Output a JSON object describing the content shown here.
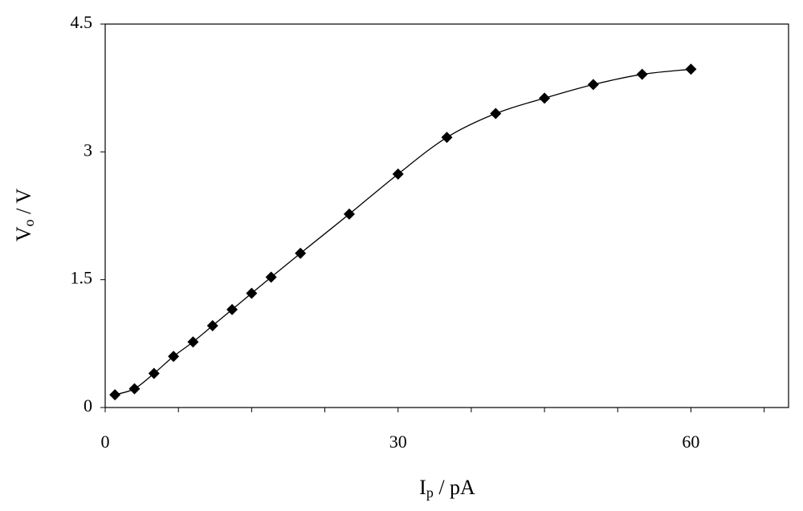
{
  "chart_data": {
    "type": "line",
    "x_label": {
      "main": "I",
      "sub": "p",
      "rest": " / pA"
    },
    "y_label": {
      "main": "V",
      "sub": "o",
      "rest": " / V"
    },
    "x": [
      1,
      3,
      5,
      7,
      9,
      11,
      13,
      15,
      17,
      20,
      25,
      30,
      35,
      40,
      45,
      50,
      55,
      60
    ],
    "series": [
      {
        "color": "#000000",
        "values": [
          0.15,
          0.22,
          0.4,
          0.6,
          0.77,
          0.96,
          1.15,
          1.34,
          1.53,
          1.81,
          2.27,
          2.74,
          3.17,
          3.45,
          3.63,
          3.79,
          3.91,
          3.97
        ]
      }
    ],
    "xlim": [
      0,
      70
    ],
    "xticks": [
      0,
      30,
      60
    ],
    "xminorticks": [
      7.5,
      15,
      22.5,
      37.5,
      45,
      52.5,
      67.5
    ],
    "ylim": [
      0,
      4.5
    ],
    "yticks": [
      0,
      1.5,
      3,
      4.5
    ]
  }
}
